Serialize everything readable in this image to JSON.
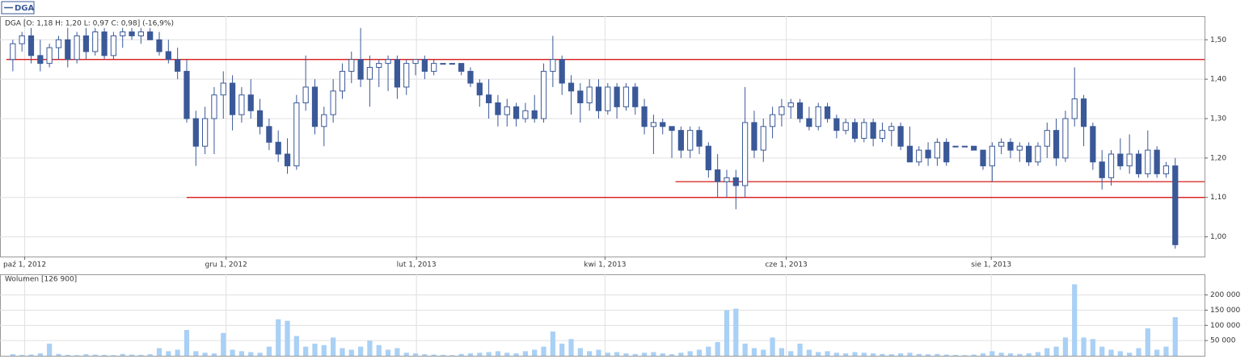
{
  "chart_data": {
    "type": "candlestick",
    "symbol": "DGA",
    "header": "DGA [O: 1,18  H: 1,20  L: 0,97  C: 0,98] (-16,9%)",
    "volume_header": "Wolumen [126 900]",
    "up_color": "#ffffff",
    "down_color": "#3b5998",
    "outline_color": "#3b5998",
    "volume_color": "#a9d0f5",
    "level_color": "#d40000",
    "grid": true,
    "ylim": [
      0.95,
      1.56
    ],
    "yticks": [
      {
        "value": 1.0,
        "label": "1,00"
      },
      {
        "value": 1.1,
        "label": "1,10"
      },
      {
        "value": 1.2,
        "label": "1,20"
      },
      {
        "value": 1.3,
        "label": "1,30"
      },
      {
        "value": 1.4,
        "label": "1,40"
      },
      {
        "value": 1.5,
        "label": "1,50"
      }
    ],
    "xlim": [
      -1.4,
      130.2
    ],
    "xticks": [
      {
        "value": 1.3,
        "label": "paź 1, 2012"
      },
      {
        "value": 23.3,
        "label": "gru 1, 2012"
      },
      {
        "value": 44.1,
        "label": "lut 1, 2013"
      },
      {
        "value": 64.7,
        "label": "kwi 1, 2013"
      },
      {
        "value": 84.5,
        "label": "cze 1, 2013"
      },
      {
        "value": 106.9,
        "label": "sie 1, 2013"
      }
    ],
    "levels": [
      {
        "value": 1.45,
        "start": -0.7
      },
      {
        "value": 1.1,
        "start": 19
      },
      {
        "value": 1.14,
        "start": 72.4
      }
    ],
    "ohlc": [
      [
        1.45,
        1.5,
        1.42,
        1.49
      ],
      [
        1.49,
        1.52,
        1.47,
        1.51
      ],
      [
        1.51,
        1.53,
        1.44,
        1.46
      ],
      [
        1.46,
        1.5,
        1.42,
        1.44
      ],
      [
        1.44,
        1.49,
        1.43,
        1.48
      ],
      [
        1.48,
        1.51,
        1.45,
        1.5
      ],
      [
        1.5,
        1.53,
        1.43,
        1.45
      ],
      [
        1.45,
        1.52,
        1.44,
        1.51
      ],
      [
        1.51,
        1.53,
        1.45,
        1.47
      ],
      [
        1.47,
        1.53,
        1.46,
        1.52
      ],
      [
        1.52,
        1.53,
        1.45,
        1.46
      ],
      [
        1.46,
        1.52,
        1.45,
        1.51
      ],
      [
        1.51,
        1.53,
        1.48,
        1.52
      ],
      [
        1.52,
        1.53,
        1.5,
        1.51
      ],
      [
        1.51,
        1.53,
        1.49,
        1.52
      ],
      [
        1.52,
        1.53,
        1.5,
        1.5
      ],
      [
        1.5,
        1.52,
        1.46,
        1.47
      ],
      [
        1.47,
        1.5,
        1.44,
        1.45
      ],
      [
        1.45,
        1.48,
        1.4,
        1.42
      ],
      [
        1.42,
        1.45,
        1.29,
        1.3
      ],
      [
        1.3,
        1.32,
        1.18,
        1.23
      ],
      [
        1.23,
        1.33,
        1.21,
        1.3
      ],
      [
        1.3,
        1.38,
        1.21,
        1.36
      ],
      [
        1.36,
        1.42,
        1.3,
        1.39
      ],
      [
        1.39,
        1.41,
        1.27,
        1.31
      ],
      [
        1.31,
        1.38,
        1.29,
        1.36
      ],
      [
        1.36,
        1.4,
        1.3,
        1.32
      ],
      [
        1.32,
        1.35,
        1.26,
        1.28
      ],
      [
        1.28,
        1.3,
        1.22,
        1.24
      ],
      [
        1.24,
        1.27,
        1.19,
        1.21
      ],
      [
        1.21,
        1.25,
        1.16,
        1.18
      ],
      [
        1.18,
        1.36,
        1.17,
        1.34
      ],
      [
        1.34,
        1.46,
        1.32,
        1.38
      ],
      [
        1.38,
        1.4,
        1.26,
        1.28
      ],
      [
        1.28,
        1.33,
        1.23,
        1.31
      ],
      [
        1.31,
        1.4,
        1.29,
        1.37
      ],
      [
        1.37,
        1.44,
        1.35,
        1.42
      ],
      [
        1.42,
        1.47,
        1.39,
        1.45
      ],
      [
        1.45,
        1.53,
        1.38,
        1.4
      ],
      [
        1.4,
        1.46,
        1.33,
        1.43
      ],
      [
        1.43,
        1.45,
        1.38,
        1.44
      ],
      [
        1.44,
        1.46,
        1.37,
        1.45
      ],
      [
        1.45,
        1.46,
        1.35,
        1.38
      ],
      [
        1.38,
        1.45,
        1.36,
        1.44
      ],
      [
        1.44,
        1.45,
        1.41,
        1.45
      ],
      [
        1.45,
        1.46,
        1.4,
        1.42
      ],
      [
        1.42,
        1.45,
        1.41,
        1.44
      ],
      [
        1.44,
        1.44,
        1.44,
        1.44
      ],
      [
        1.44,
        1.44,
        1.44,
        1.44
      ],
      [
        1.44,
        1.44,
        1.41,
        1.42
      ],
      [
        1.42,
        1.43,
        1.38,
        1.39
      ],
      [
        1.39,
        1.4,
        1.33,
        1.36
      ],
      [
        1.36,
        1.4,
        1.3,
        1.34
      ],
      [
        1.34,
        1.36,
        1.28,
        1.31
      ],
      [
        1.31,
        1.35,
        1.28,
        1.33
      ],
      [
        1.33,
        1.34,
        1.28,
        1.3
      ],
      [
        1.3,
        1.34,
        1.29,
        1.32
      ],
      [
        1.32,
        1.36,
        1.29,
        1.3
      ],
      [
        1.3,
        1.44,
        1.29,
        1.42
      ],
      [
        1.42,
        1.51,
        1.38,
        1.45
      ],
      [
        1.45,
        1.46,
        1.36,
        1.39
      ],
      [
        1.39,
        1.41,
        1.31,
        1.37
      ],
      [
        1.37,
        1.39,
        1.29,
        1.34
      ],
      [
        1.34,
        1.4,
        1.32,
        1.38
      ],
      [
        1.38,
        1.4,
        1.3,
        1.32
      ],
      [
        1.32,
        1.39,
        1.31,
        1.38
      ],
      [
        1.38,
        1.39,
        1.3,
        1.33
      ],
      [
        1.33,
        1.39,
        1.32,
        1.38
      ],
      [
        1.38,
        1.39,
        1.31,
        1.33
      ],
      [
        1.33,
        1.35,
        1.26,
        1.28
      ],
      [
        1.28,
        1.31,
        1.21,
        1.29
      ],
      [
        1.29,
        1.3,
        1.26,
        1.28
      ],
      [
        1.28,
        1.28,
        1.2,
        1.27
      ],
      [
        1.27,
        1.28,
        1.2,
        1.22
      ],
      [
        1.22,
        1.28,
        1.2,
        1.27
      ],
      [
        1.27,
        1.28,
        1.21,
        1.23
      ],
      [
        1.23,
        1.24,
        1.15,
        1.17
      ],
      [
        1.17,
        1.21,
        1.1,
        1.14
      ],
      [
        1.14,
        1.17,
        1.1,
        1.15
      ],
      [
        1.15,
        1.17,
        1.07,
        1.13
      ],
      [
        1.13,
        1.38,
        1.1,
        1.29
      ],
      [
        1.29,
        1.32,
        1.2,
        1.22
      ],
      [
        1.22,
        1.3,
        1.19,
        1.28
      ],
      [
        1.28,
        1.33,
        1.25,
        1.31
      ],
      [
        1.31,
        1.35,
        1.28,
        1.33
      ],
      [
        1.33,
        1.35,
        1.3,
        1.34
      ],
      [
        1.34,
        1.35,
        1.29,
        1.3
      ],
      [
        1.3,
        1.33,
        1.27,
        1.28
      ],
      [
        1.28,
        1.34,
        1.27,
        1.33
      ],
      [
        1.33,
        1.34,
        1.29,
        1.3
      ],
      [
        1.3,
        1.31,
        1.25,
        1.27
      ],
      [
        1.27,
        1.3,
        1.26,
        1.29
      ],
      [
        1.29,
        1.3,
        1.24,
        1.25
      ],
      [
        1.25,
        1.3,
        1.24,
        1.29
      ],
      [
        1.29,
        1.3,
        1.23,
        1.25
      ],
      [
        1.25,
        1.29,
        1.24,
        1.27
      ],
      [
        1.27,
        1.29,
        1.23,
        1.28
      ],
      [
        1.28,
        1.29,
        1.22,
        1.23
      ],
      [
        1.23,
        1.28,
        1.19,
        1.19
      ],
      [
        1.19,
        1.23,
        1.18,
        1.22
      ],
      [
        1.22,
        1.24,
        1.18,
        1.2
      ],
      [
        1.2,
        1.25,
        1.18,
        1.24
      ],
      [
        1.24,
        1.25,
        1.18,
        1.19
      ],
      [
        1.23,
        1.23,
        1.23,
        1.23
      ],
      [
        1.23,
        1.23,
        1.23,
        1.23
      ],
      [
        1.23,
        1.23,
        1.22,
        1.22
      ],
      [
        1.22,
        1.22,
        1.17,
        1.18
      ],
      [
        1.18,
        1.24,
        1.14,
        1.23
      ],
      [
        1.23,
        1.25,
        1.21,
        1.24
      ],
      [
        1.24,
        1.25,
        1.2,
        1.22
      ],
      [
        1.22,
        1.24,
        1.19,
        1.23
      ],
      [
        1.23,
        1.24,
        1.18,
        1.19
      ],
      [
        1.19,
        1.24,
        1.18,
        1.23
      ],
      [
        1.23,
        1.29,
        1.2,
        1.27
      ],
      [
        1.27,
        1.3,
        1.18,
        1.2
      ],
      [
        1.2,
        1.32,
        1.19,
        1.3
      ],
      [
        1.3,
        1.43,
        1.28,
        1.35
      ],
      [
        1.35,
        1.36,
        1.23,
        1.28
      ],
      [
        1.28,
        1.29,
        1.17,
        1.19
      ],
      [
        1.19,
        1.22,
        1.12,
        1.15
      ],
      [
        1.15,
        1.22,
        1.13,
        1.21
      ],
      [
        1.21,
        1.25,
        1.17,
        1.18
      ],
      [
        1.18,
        1.26,
        1.16,
        1.21
      ],
      [
        1.21,
        1.22,
        1.15,
        1.16
      ],
      [
        1.16,
        1.27,
        1.15,
        1.22
      ],
      [
        1.22,
        1.23,
        1.15,
        1.16
      ],
      [
        1.16,
        1.19,
        1.15,
        1.18
      ],
      [
        1.18,
        1.2,
        0.97,
        0.98
      ]
    ],
    "volume": [
      5000,
      3000,
      4000,
      8000,
      40000,
      6000,
      3000,
      2000,
      5000,
      4000,
      3000,
      2000,
      6000,
      4000,
      3000,
      5000,
      25000,
      15000,
      20000,
      85000,
      15000,
      10000,
      8000,
      75000,
      20000,
      15000,
      12000,
      10000,
      30000,
      120000,
      115000,
      65000,
      30000,
      40000,
      35000,
      60000,
      25000,
      20000,
      30000,
      50000,
      35000,
      20000,
      25000,
      10000,
      8000,
      5000,
      4000,
      3000,
      2000,
      6000,
      8000,
      10000,
      12000,
      15000,
      10000,
      8000,
      15000,
      20000,
      30000,
      80000,
      40000,
      55000,
      25000,
      15000,
      20000,
      10000,
      12000,
      8000,
      6000,
      10000,
      12000,
      8000,
      5000,
      10000,
      15000,
      20000,
      30000,
      45000,
      150000,
      155000,
      40000,
      25000,
      20000,
      60000,
      25000,
      15000,
      40000,
      20000,
      12000,
      15000,
      10000,
      8000,
      12000,
      10000,
      8000,
      6000,
      5000,
      8000,
      10000,
      6000,
      5000,
      6000,
      4000,
      3000,
      2000,
      4000,
      8000,
      15000,
      10000,
      8000,
      6000,
      8000,
      12000,
      25000,
      30000,
      60000,
      235000,
      60000,
      55000,
      30000,
      20000,
      15000,
      10000,
      25000,
      90000,
      20000,
      30000,
      126900
    ],
    "vlim": [
      0,
      268000
    ],
    "vticks": [
      {
        "value": 50000,
        "label": "50 000"
      },
      {
        "value": 100000,
        "label": "100 000"
      },
      {
        "value": 150000,
        "label": "150 000"
      },
      {
        "value": 200000,
        "label": "200 000"
      }
    ]
  }
}
